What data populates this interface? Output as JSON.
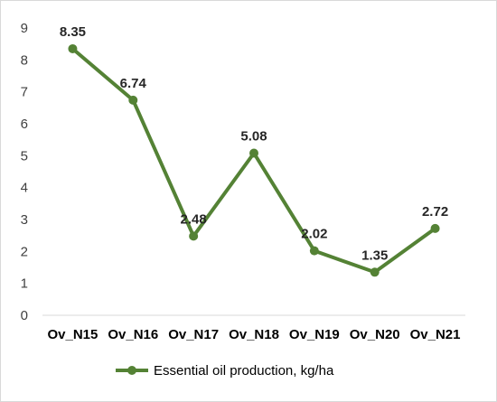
{
  "chart_data": {
    "type": "line",
    "categories": [
      "Ov_N15",
      "Ov_N16",
      "Ov_N17",
      "Ov_N18",
      "Ov_N19",
      "Ov_N20",
      "Ov_N21"
    ],
    "series": [
      {
        "name": "Essential oil production, kg/ha",
        "values": [
          8.35,
          6.74,
          2.48,
          5.08,
          2.02,
          1.35,
          2.72
        ],
        "color": "#548235",
        "marker": "circle"
      }
    ],
    "data_labels": [
      "8.35",
      "6.74",
      "2.48",
      "5.08",
      "2.02",
      "1.35",
      "2.72"
    ],
    "ylim": [
      0,
      9
    ],
    "yticks": [
      "0",
      "1",
      "2",
      "3",
      "4",
      "5",
      "6",
      "7",
      "8",
      "9"
    ],
    "grid": false,
    "legend_position": "bottom"
  }
}
